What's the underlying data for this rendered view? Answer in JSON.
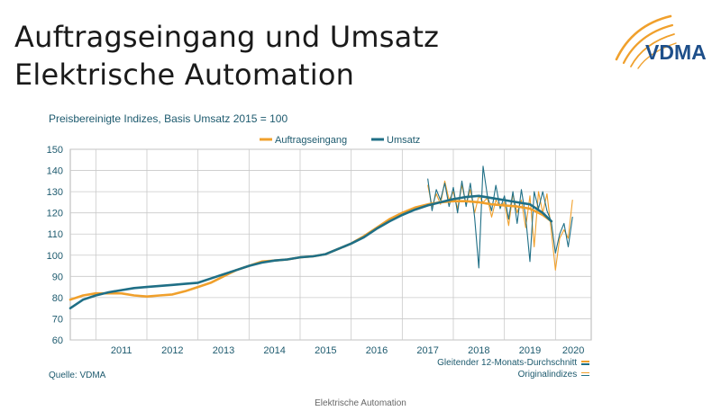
{
  "title_line1": "Auftragseingang und Umsatz",
  "title_line2": "Elektrische Automation",
  "logo_text": "VDMA",
  "subtitle": "Preisbereinigte Indizes, Basis Umsatz 2015 = 100",
  "source": "Quelle: VDMA",
  "footer": "Elektrische Automation",
  "notes": [
    "Gleitender 12-Monats-Durchschnitt",
    "Originalindizes"
  ],
  "colors": {
    "orange": "#f0a02c",
    "teal": "#1f6f86",
    "grid": "#c9c9c9",
    "text": "#1d5a6e",
    "logo_dark": "#1e4f8a"
  },
  "chart_data": {
    "type": "line",
    "ylim": [
      60,
      150
    ],
    "yticks": [
      "150",
      "140",
      "130",
      "120",
      "110",
      "100",
      "90",
      "80",
      "70",
      "60"
    ],
    "year_labels": [
      "2011",
      "2012",
      "2013",
      "2014",
      "2015",
      "2016",
      "2017",
      "2018",
      "2019",
      "2020"
    ],
    "x_range": [
      2010.5,
      2020.7
    ],
    "legend": [
      "Auftragseingang",
      "Umsatz"
    ],
    "series": [
      {
        "name": "Auftragseingang",
        "kind": "avg",
        "x": [
          2010.5,
          2010.75,
          2011.0,
          2011.25,
          2011.5,
          2011.75,
          2012.0,
          2012.25,
          2012.5,
          2012.75,
          2013.0,
          2013.25,
          2013.5,
          2013.75,
          2014.0,
          2014.25,
          2014.5,
          2014.75,
          2015.0,
          2015.25,
          2015.5,
          2015.75,
          2016.0,
          2016.25,
          2016.5,
          2016.75,
          2017.0,
          2017.25,
          2017.5,
          2017.75,
          2018.0,
          2018.25,
          2018.5,
          2018.75,
          2019.0,
          2019.25,
          2019.5,
          2019.75,
          2019.92
        ],
        "y": [
          79,
          81,
          82,
          82,
          82,
          81,
          80.5,
          81,
          81.5,
          83,
          85,
          87,
          90,
          93,
          95,
          97,
          97.5,
          98,
          99,
          99.5,
          100.5,
          103,
          105.5,
          109,
          113,
          117,
          120,
          122.5,
          124,
          125,
          125.5,
          125.5,
          125,
          124,
          123.5,
          123,
          122,
          119,
          116
        ]
      },
      {
        "name": "Umsatz",
        "kind": "avg",
        "x": [
          2010.5,
          2010.75,
          2011.0,
          2011.25,
          2011.5,
          2011.75,
          2012.0,
          2012.25,
          2012.5,
          2012.75,
          2013.0,
          2013.25,
          2013.5,
          2013.75,
          2014.0,
          2014.25,
          2014.5,
          2014.75,
          2015.0,
          2015.25,
          2015.5,
          2015.75,
          2016.0,
          2016.25,
          2016.5,
          2016.75,
          2017.0,
          2017.25,
          2017.5,
          2017.75,
          2018.0,
          2018.25,
          2018.5,
          2018.75,
          2019.0,
          2019.25,
          2019.5,
          2019.75,
          2019.92
        ],
        "y": [
          75,
          79,
          81,
          82.5,
          83.5,
          84.5,
          85,
          85.5,
          86,
          86.5,
          87,
          89,
          91,
          93,
          95,
          96.5,
          97.5,
          98,
          99,
          99.5,
          100.5,
          103,
          105.5,
          108.5,
          112.5,
          116,
          119,
          121.5,
          123.5,
          125,
          126.5,
          127.5,
          128,
          127,
          126,
          125,
          124,
          120,
          116
        ]
      },
      {
        "name": "Auftragseingang Originalindex",
        "kind": "orig",
        "x": [
          2017.5,
          2017.583,
          2017.667,
          2017.75,
          2017.833,
          2017.917,
          2018.0,
          2018.083,
          2018.167,
          2018.25,
          2018.333,
          2018.417,
          2018.5,
          2018.583,
          2018.667,
          2018.75,
          2018.833,
          2018.917,
          2019.0,
          2019.083,
          2019.167,
          2019.25,
          2019.333,
          2019.417,
          2019.5,
          2019.583,
          2019.667,
          2019.75,
          2019.833,
          2019.917,
          2020.0,
          2020.083,
          2020.167,
          2020.25,
          2020.333
        ],
        "y": [
          133,
          123,
          129,
          124,
          135,
          126,
          130,
          122,
          133,
          124,
          131,
          120,
          128,
          125,
          127,
          118,
          126,
          123,
          125,
          114,
          129,
          120,
          126,
          113,
          128,
          104,
          130,
          120,
          129,
          112,
          93,
          108,
          112,
          108,
          126
        ]
      },
      {
        "name": "Umsatz Originalindex",
        "kind": "orig",
        "x": [
          2017.5,
          2017.583,
          2017.667,
          2017.75,
          2017.833,
          2017.917,
          2018.0,
          2018.083,
          2018.167,
          2018.25,
          2018.333,
          2018.417,
          2018.5,
          2018.583,
          2018.667,
          2018.75,
          2018.833,
          2018.917,
          2019.0,
          2019.083,
          2019.167,
          2019.25,
          2019.333,
          2019.417,
          2019.5,
          2019.583,
          2019.667,
          2019.75,
          2019.833,
          2019.917,
          2020.0,
          2020.083,
          2020.167,
          2020.25,
          2020.333
        ],
        "y": [
          136,
          121,
          131,
          126,
          134,
          123,
          132,
          120,
          135,
          123,
          134,
          118,
          94,
          142,
          128,
          121,
          133,
          122,
          128,
          117,
          130,
          115,
          131,
          118,
          97,
          130,
          122,
          130,
          121,
          116,
          101,
          110,
          115,
          104,
          118
        ]
      }
    ]
  }
}
